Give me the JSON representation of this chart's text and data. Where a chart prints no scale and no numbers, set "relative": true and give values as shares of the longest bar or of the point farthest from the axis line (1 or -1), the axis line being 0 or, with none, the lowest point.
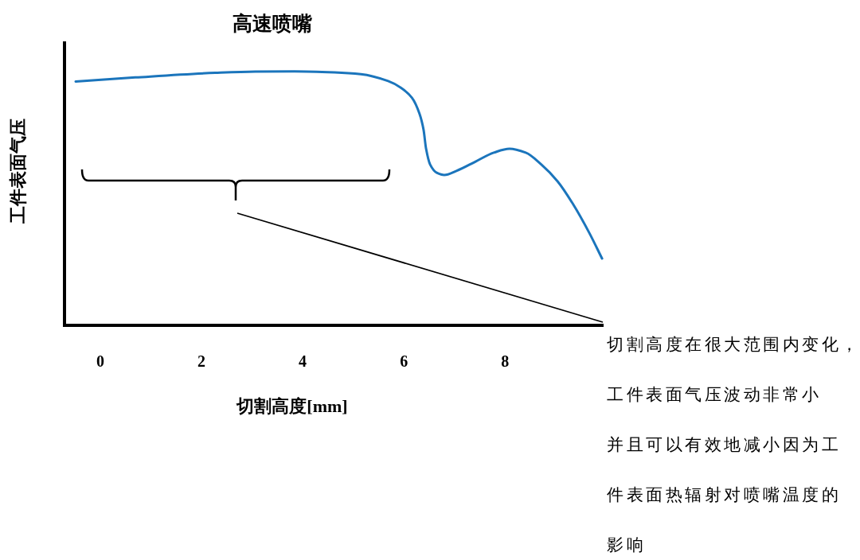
{
  "chart_data": {
    "type": "line",
    "title": "高速喷嘴",
    "xlabel": "切割高度[mm]",
    "ylabel": "工件表面气压",
    "relative": true,
    "tick_labels": "x",
    "xlim": [
      -0.71,
      9.95
    ],
    "xticks": [
      0,
      2,
      4,
      6,
      8
    ],
    "x": [
      -0.49,
      0.69,
      2.27,
      3.06,
      3.84,
      4.63,
      5.15,
      5.69,
      5.94,
      6.16,
      6.31,
      6.39,
      6.44,
      6.52,
      6.65,
      6.8,
      7.04,
      7.42,
      7.78,
      8.09,
      8.41,
      8.72,
      9.04,
      9.35,
      9.67,
      9.92
    ],
    "series": [
      {
        "color": "#1b75bc",
        "values": [
          0.96,
          0.976,
          0.994,
          0.999,
          1,
          0.996,
          0.989,
          0.962,
          0.936,
          0.896,
          0.833,
          0.77,
          0.695,
          0.633,
          0.601,
          0.592,
          0.608,
          0.645,
          0.68,
          0.695,
          0.68,
          0.633,
          0.567,
          0.476,
          0.363,
          0.263
        ]
      }
    ],
    "annotations": [
      "切割高度在很大范围内变化，工件表面气压波动非常小",
      "并且可以有效地减小因为工件表面热辐射对喷嘴温度的影响"
    ]
  }
}
